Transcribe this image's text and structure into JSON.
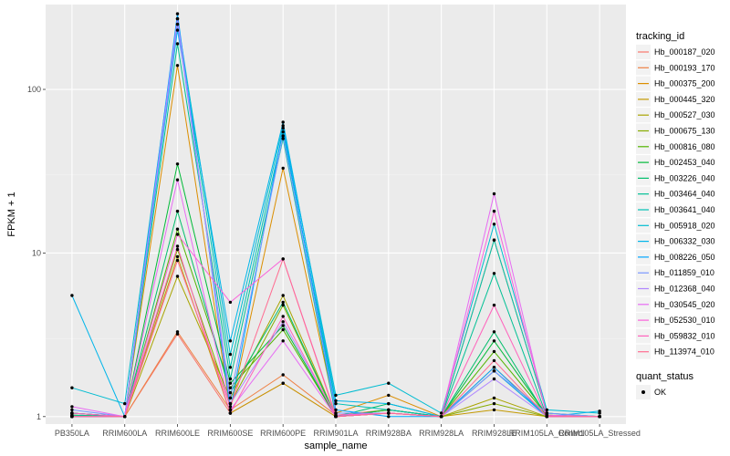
{
  "chart_data": {
    "type": "line",
    "title": "",
    "xlabel": "sample_name",
    "ylabel": "FPKM + 1",
    "yscale": "log",
    "ylim": [
      0.9,
      330
    ],
    "grid": true,
    "legend_position": "right",
    "categories": [
      "PB350LA",
      "RRIM600LA",
      "RRIM600LE",
      "RRIM600SE",
      "RRIM600PE",
      "RRIM901LA",
      "RRIM928BA",
      "RRIM928LA",
      "RRIM928LE",
      "RRIM105LA_Control",
      "RRIM105LA_Stressed"
    ],
    "y_ticks": [
      {
        "value": 1,
        "label": "1"
      },
      {
        "value": 10,
        "label": "10"
      },
      {
        "value": 100,
        "label": "100"
      }
    ],
    "legend": {
      "color_title": "tracking_id",
      "shape_title": "quant_status",
      "shape_entries": [
        "OK"
      ]
    },
    "series": [
      {
        "name": "Hb_000187_020",
        "color": "#F8766D",
        "values": [
          1.0,
          1.0,
          3.2,
          1.05,
          1.6,
          1.0,
          1.05,
          1.0,
          1.9,
          1.0,
          1.0
        ]
      },
      {
        "name": "Hb_000193_170",
        "color": "#EE8044",
        "values": [
          1.02,
          1.0,
          3.3,
          1.1,
          1.8,
          1.02,
          1.1,
          1.0,
          2.0,
          1.02,
          1.0
        ]
      },
      {
        "name": "Hb_000375_200",
        "color": "#DB8E00",
        "values": [
          1.05,
          1.0,
          140,
          1.1,
          33,
          1.05,
          1.35,
          1.0,
          12,
          1.05,
          1.0
        ]
      },
      {
        "name": "Hb_000445_320",
        "color": "#C49A00",
        "values": [
          1.0,
          1.0,
          9.5,
          1.05,
          1.6,
          1.0,
          1.05,
          1.0,
          1.1,
          1.0,
          1.0
        ]
      },
      {
        "name": "Hb_000527_030",
        "color": "#A9A400",
        "values": [
          1.05,
          1.0,
          7.2,
          1.3,
          5.5,
          1.0,
          1.1,
          1.0,
          1.3,
          1.0,
          1.0
        ]
      },
      {
        "name": "Hb_000675_130",
        "color": "#87AC00",
        "values": [
          1.0,
          1.0,
          10.5,
          1.2,
          4.8,
          1.0,
          1.05,
          1.0,
          1.2,
          1.0,
          1.0
        ]
      },
      {
        "name": "Hb_000816_080",
        "color": "#53B400",
        "values": [
          1.02,
          1.0,
          14,
          1.5,
          3.4,
          1.0,
          1.1,
          1.0,
          2.5,
          1.02,
          1.0
        ]
      },
      {
        "name": "Hb_002453_040",
        "color": "#00BA38",
        "values": [
          1.05,
          1.0,
          35,
          1.6,
          3.6,
          1.0,
          1.1,
          1.0,
          2.9,
          1.02,
          1.0
        ]
      },
      {
        "name": "Hb_003226_040",
        "color": "#00BE6B",
        "values": [
          1.0,
          1.0,
          18,
          1.4,
          5.0,
          1.0,
          1.2,
          1.0,
          3.3,
          1.0,
          1.0
        ]
      },
      {
        "name": "Hb_003464_040",
        "color": "#00C094",
        "values": [
          1.02,
          1.0,
          190,
          1.7,
          50,
          1.0,
          1.05,
          1.0,
          7.5,
          1.0,
          1.0
        ]
      },
      {
        "name": "Hb_003641_040",
        "color": "#00C0B5",
        "values": [
          1.0,
          1.0,
          250,
          2.0,
          55,
          1.2,
          1.1,
          1.0,
          12,
          1.05,
          1.0
        ]
      },
      {
        "name": "Hb_005918_020",
        "color": "#00BCD1",
        "values": [
          1.5,
          1.2,
          270,
          2.4,
          60,
          1.35,
          1.6,
          1.05,
          15,
          1.1,
          1.05
        ]
      },
      {
        "name": "Hb_006332_030",
        "color": "#00B5EA",
        "values": [
          5.5,
          1.0,
          230,
          2.9,
          63,
          1.25,
          1.2,
          1.0,
          1.9,
          1.0,
          1.08
        ]
      },
      {
        "name": "Hb_008226_050",
        "color": "#00A5FF",
        "values": [
          1.05,
          1.0,
          290,
          1.1,
          58,
          1.1,
          1.0,
          1.0,
          2.0,
          1.0,
          1.0
        ]
      },
      {
        "name": "Hb_011859_010",
        "color": "#7997FF",
        "values": [
          1.1,
          1.0,
          250,
          1.3,
          52,
          1.05,
          1.05,
          1.0,
          1.9,
          1.05,
          1.0
        ]
      },
      {
        "name": "Hb_012368_040",
        "color": "#B086FF",
        "values": [
          1.0,
          1.0,
          270,
          1.2,
          3.8,
          1.02,
          1.05,
          1.0,
          1.7,
          1.0,
          1.0
        ]
      },
      {
        "name": "Hb_030545_020",
        "color": "#E76BF3",
        "values": [
          1.15,
          1.0,
          28,
          1.1,
          2.9,
          1.0,
          1.05,
          1.0,
          23,
          1.0,
          1.0
        ]
      },
      {
        "name": "Hb_052530_010",
        "color": "#FA62DB",
        "values": [
          1.0,
          1.0,
          13,
          5.0,
          9.2,
          1.02,
          1.05,
          1.0,
          18,
          1.02,
          1.0
        ]
      },
      {
        "name": "Hb_059832_010",
        "color": "#FF62BC",
        "values": [
          1.05,
          1.0,
          11,
          1.05,
          4.1,
          1.0,
          1.05,
          1.0,
          4.8,
          1.0,
          1.0
        ]
      },
      {
        "name": "Hb_113974_010",
        "color": "#FF6C91",
        "values": [
          1.0,
          1.0,
          9.0,
          1.15,
          9.2,
          1.0,
          1.05,
          1.0,
          2.2,
          1.0,
          1.0
        ]
      }
    ]
  }
}
